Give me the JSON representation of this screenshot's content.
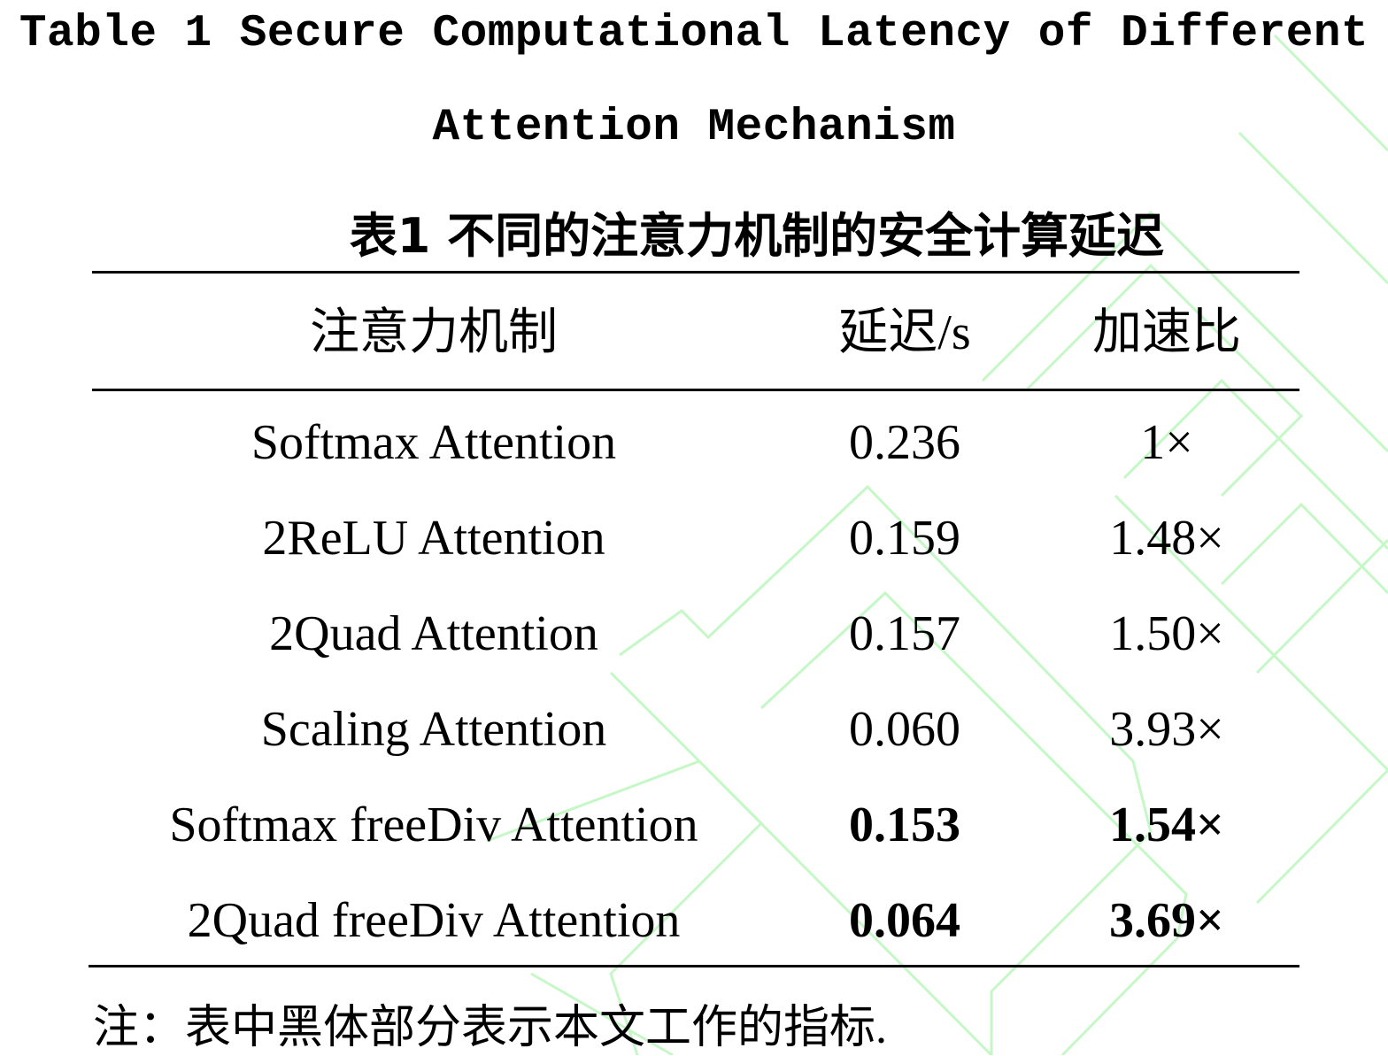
{
  "title_en": [
    "Table 1 Secure Computational Latency of Different",
    "Attention Mechanism"
  ],
  "title_zh": "表1 不同的注意力机制的安全计算延迟",
  "table": {
    "header": [
      "注意力机制",
      "延迟/s",
      "加速比"
    ],
    "rows": [
      [
        "Softmax Attention",
        "0.236",
        "1×"
      ],
      [
        "2ReLU Attention",
        "0.159",
        "1.48×"
      ],
      [
        "2Quad Attention",
        "0.157",
        "1.50×"
      ],
      [
        "Scaling Attention",
        "0.060",
        "3.93×"
      ],
      [
        "Softmax freeDiv Attention",
        "0.153",
        "1.54×"
      ],
      [
        "2Quad freeDiv Attention",
        "0.064",
        "3.69×"
      ]
    ]
  },
  "note": "注：表中黑体部分表示本文工作的指标."
}
